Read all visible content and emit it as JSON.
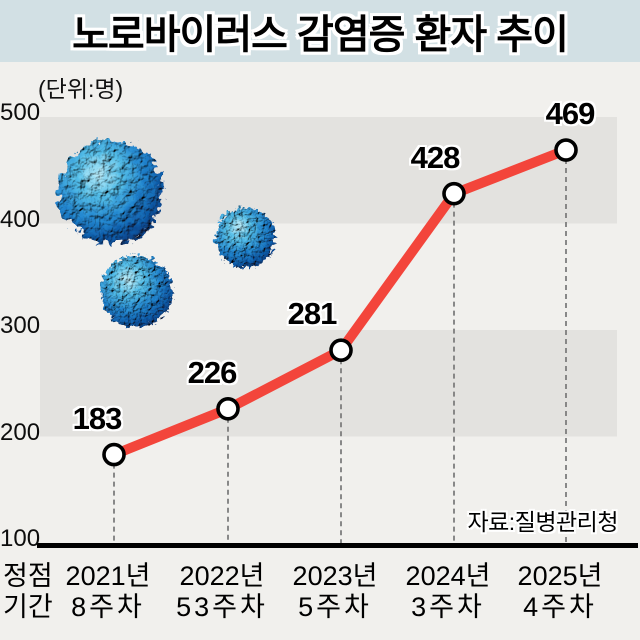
{
  "header": {
    "title": "노로바이러스 감염증 환자 추이"
  },
  "chart": {
    "unit_label": "(단위:명)",
    "source_label": "자료:질병관리청",
    "row_header": {
      "line1": "정점",
      "line2": "기간"
    }
  },
  "chart_data": {
    "type": "line",
    "title": "노로바이러스 감염증 환자 추이",
    "unit": "명",
    "categories": [
      {
        "year": "2021년",
        "week": "8주차"
      },
      {
        "year": "2022년",
        "week": "53주차"
      },
      {
        "year": "2023년",
        "week": "5주차"
      },
      {
        "year": "2024년",
        "week": "3주차"
      },
      {
        "year": "2025년",
        "week": "4주차"
      }
    ],
    "x_axis_label": "정점 기간",
    "values": [
      183,
      226,
      281,
      428,
      469
    ],
    "yticks": [
      100,
      200,
      300,
      400,
      500
    ],
    "ylim": [
      100,
      500
    ],
    "grid": "alternating horizontal bands (500-400 and 300-200 shaded)",
    "legend": null,
    "source": "자료:질병관리청"
  },
  "colors": {
    "title_bg": "#d2e0e4",
    "page_bg": "#f1f0ed",
    "band": "#e3e2df",
    "line": "#f3453b",
    "marker_fill": "#ffffff",
    "marker_stroke": "#000000",
    "guide_dash": "#7d7d7d",
    "baseline": "#000000",
    "virus_dark": "#0a4186",
    "virus_mid": "#2286cf",
    "virus_light": "#bdeefb"
  },
  "decorations": {
    "virus_icons": [
      {
        "name": "norovirus-particle-large"
      },
      {
        "name": "norovirus-particle-medium"
      },
      {
        "name": "norovirus-particle-small"
      }
    ]
  }
}
